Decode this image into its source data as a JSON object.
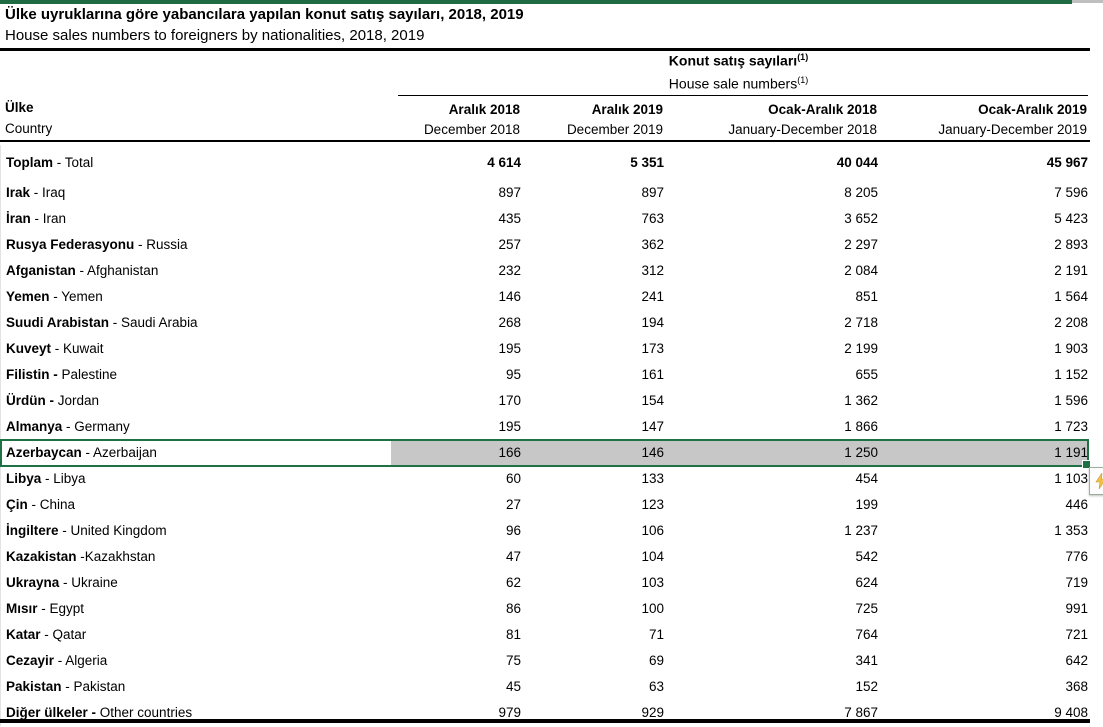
{
  "colors": {
    "accent_green": "#1E7145",
    "selection_fill": "#C7C7C7",
    "top_bar_green": "#206B44",
    "top_bar_right_gray": "#BFBFBF"
  },
  "header": {
    "title_tr": "Ülke uyruklarına göre yabancılara yapılan konut satış sayıları, 2018, 2019",
    "title_en": "House sales numbers to foreigners by nationalities, 2018, 2019"
  },
  "table": {
    "group": {
      "tr": "Konut satış sayıları",
      "en": "House sale numbers",
      "sup": "(1)"
    },
    "corner": {
      "tr": "Ülke",
      "en": "Country"
    },
    "columns": [
      {
        "tr": "Aralık 2018",
        "en": "December 2018"
      },
      {
        "tr": "Aralık 2019",
        "en": "December 2019"
      },
      {
        "tr": "Ocak-Aralık 2018",
        "en": "January-December 2018"
      },
      {
        "tr": "Ocak-Aralık 2019",
        "en": "January-December 2019"
      }
    ],
    "total": {
      "label_bold": "Toplam",
      "label_rest": " - Total",
      "values": [
        "4 614",
        "5 351",
        "40 044",
        "45 967"
      ]
    },
    "rows": [
      {
        "label_bold": "Irak",
        "label_rest": " - Iraq",
        "values": [
          "897",
          "897",
          "8 205",
          "7 596"
        ]
      },
      {
        "label_bold": "İran",
        "label_rest": " - Iran",
        "values": [
          "435",
          "763",
          "3 652",
          "5 423"
        ]
      },
      {
        "label_bold": "Rusya Federasyonu",
        "label_rest": " - Russia",
        "values": [
          "257",
          "362",
          "2 297",
          "2 893"
        ]
      },
      {
        "label_bold": "Afganistan",
        "label_rest": " - Afghanistan",
        "values": [
          "232",
          "312",
          "2 084",
          "2 191"
        ]
      },
      {
        "label_bold": "Yemen",
        "label_rest": " - Yemen",
        "values": [
          "146",
          "241",
          "851",
          "1 564"
        ]
      },
      {
        "label_bold": "Suudi Arabistan",
        "label_rest": " - Saudi Arabia",
        "values": [
          "268",
          "194",
          "2 718",
          "2 208"
        ]
      },
      {
        "label_bold": "Kuveyt",
        "label_rest": " - Kuwait",
        "values": [
          "195",
          "173",
          "2 199",
          "1 903"
        ]
      },
      {
        "label_bold": "Filistin -",
        "label_rest": " Palestine",
        "values": [
          "95",
          "161",
          "655",
          "1 152"
        ]
      },
      {
        "label_bold": "Ürdün -",
        "label_rest": " Jordan",
        "values": [
          "170",
          "154",
          "1 362",
          "1 596"
        ]
      },
      {
        "label_bold": "Almanya",
        "label_rest": " - Germany",
        "values": [
          "195",
          "147",
          "1 866",
          "1 723"
        ]
      },
      {
        "label_bold": "Azerbaycan",
        "label_rest": " - Azerbaijan",
        "values": [
          "166",
          "146",
          "1 250",
          "1 191"
        ],
        "highlighted": true
      },
      {
        "label_bold": "Libya",
        "label_rest": " - Libya",
        "values": [
          "60",
          "133",
          "454",
          "1 103"
        ]
      },
      {
        "label_bold": "Çin",
        "label_rest": " - China",
        "values": [
          "27",
          "123",
          "199",
          "446"
        ]
      },
      {
        "label_bold": "İngiltere",
        "label_rest": " - United Kingdom",
        "values": [
          "96",
          "106",
          "1 237",
          "1 353"
        ]
      },
      {
        "label_bold": "Kazakistan",
        "label_rest": " -Kazakhstan",
        "values": [
          "47",
          "104",
          "542",
          "776"
        ]
      },
      {
        "label_bold": "Ukrayna",
        "label_rest": " - Ukraine",
        "values": [
          "62",
          "103",
          "624",
          "719"
        ]
      },
      {
        "label_bold": "Mısır",
        "label_rest": " - Egypt",
        "values": [
          "86",
          "100",
          "725",
          "991"
        ]
      },
      {
        "label_bold": "Katar",
        "label_rest": " - Qatar",
        "values": [
          "81",
          "71",
          "764",
          "721"
        ]
      },
      {
        "label_bold": "Cezayir",
        "label_rest": " - Algeria",
        "values": [
          "75",
          "69",
          "341",
          "642"
        ]
      },
      {
        "label_bold": "Pakistan",
        "label_rest": " - Pakistan",
        "values": [
          "45",
          "63",
          "152",
          "368"
        ]
      },
      {
        "label_bold": "Diğer ülkeler -",
        "label_rest": " Other countries",
        "values": [
          "979",
          "929",
          "7 867",
          "9 408"
        ]
      }
    ]
  },
  "selection": {
    "selected_row_label": "Azerbaycan - Azerbaijan"
  }
}
